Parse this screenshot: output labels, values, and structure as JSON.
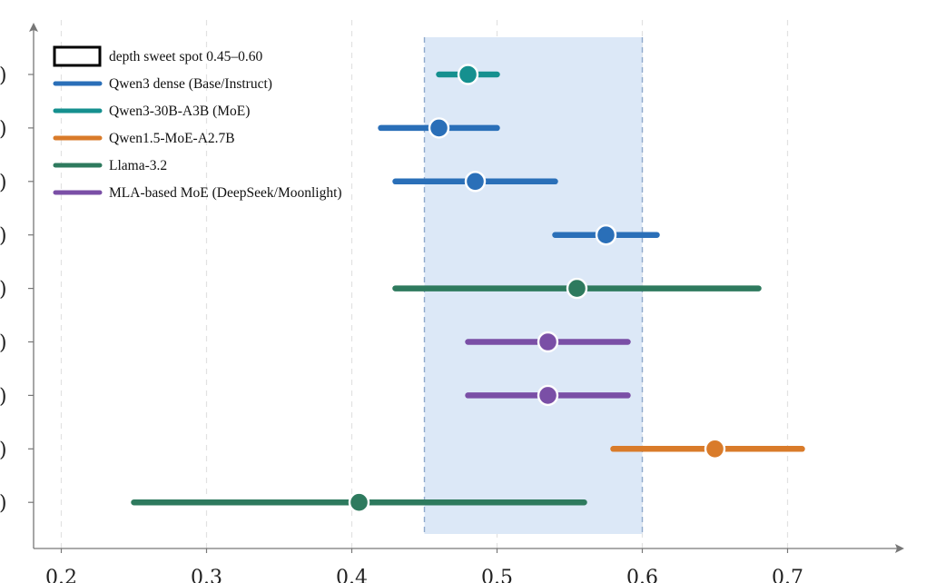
{
  "chart_data": {
    "type": "interval",
    "title": "",
    "xlabel": "",
    "ylabel": "",
    "xlim": [
      0.18,
      0.78
    ],
    "x_ticks": [
      0.2,
      0.3,
      0.4,
      0.5,
      0.6,
      0.7
    ],
    "x_tick_labels": [
      "0.2",
      "0.3",
      "0.4",
      "0.5",
      "0.6",
      "0.7"
    ],
    "grid": "vertical dashed",
    "legend_position": "top-left",
    "sweet_spot": {
      "label": "depth sweet spot 0.45–0.60",
      "from": 0.45,
      "to": 0.6,
      "color": "#dce8f7"
    },
    "series": [
      {
        "name": "Qwen3 dense (Base/Instruct)",
        "color": "#2a6fb8"
      },
      {
        "name": "Qwen3-30B-A3B (MoE)",
        "color": "#15908f"
      },
      {
        "name": "Qwen1.5-MoE-A2.7B",
        "color": "#d97b2a"
      },
      {
        "name": "Llama-3.2",
        "color": "#2e7a5e"
      },
      {
        "name": "MLA-based MoE (DeepSeek/Moonlight)",
        "color": "#7a4fa6"
      }
    ],
    "rows": [
      {
        "label": ")",
        "series": "Qwen3-30B-A3B (MoE)",
        "low": 0.46,
        "high": 0.5,
        "point": 0.48
      },
      {
        "label": ")",
        "series": "Qwen3 dense (Base/Instruct)",
        "low": 0.42,
        "high": 0.5,
        "point": 0.46
      },
      {
        "label": ")",
        "series": "Qwen3 dense (Base/Instruct)",
        "low": 0.43,
        "high": 0.54,
        "point": 0.485
      },
      {
        "label": ")",
        "series": "Qwen3 dense (Base/Instruct)",
        "low": 0.54,
        "high": 0.61,
        "point": 0.575
      },
      {
        "label": ")",
        "series": "Llama-3.2",
        "low": 0.43,
        "high": 0.68,
        "point": 0.555
      },
      {
        "label": ")",
        "series": "MLA-based MoE (DeepSeek/Moonlight)",
        "low": 0.48,
        "high": 0.59,
        "point": 0.535
      },
      {
        "label": ")",
        "series": "MLA-based MoE (DeepSeek/Moonlight)",
        "low": 0.48,
        "high": 0.59,
        "point": 0.535
      },
      {
        "label": ")",
        "series": "Qwen1.5-MoE-A2.7B",
        "low": 0.58,
        "high": 0.71,
        "point": 0.65
      },
      {
        "label": ")",
        "series": "Llama-3.2",
        "low": 0.25,
        "high": 0.56,
        "point": 0.405
      }
    ]
  }
}
